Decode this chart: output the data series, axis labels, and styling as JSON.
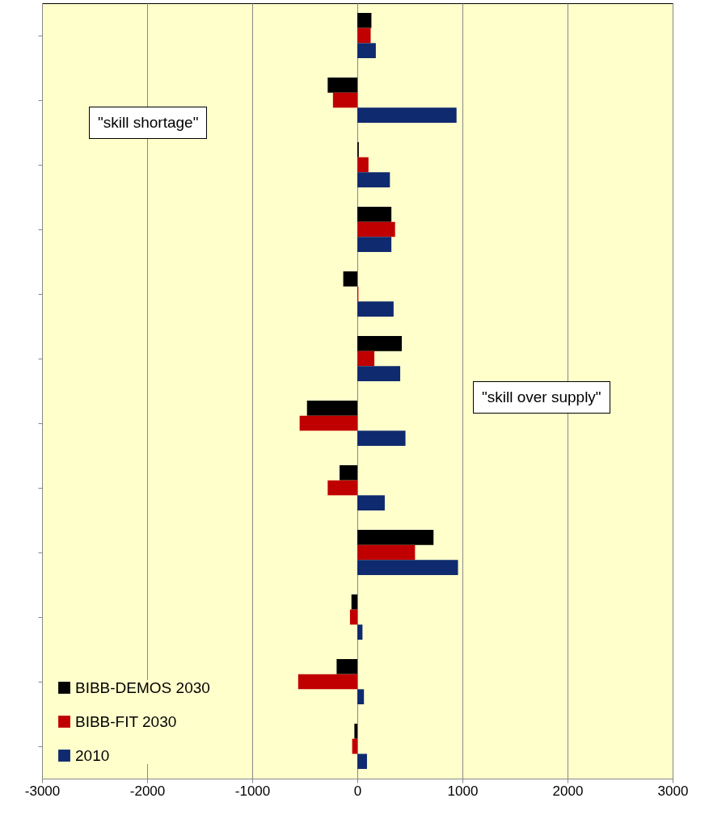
{
  "chart_data": {
    "type": "bar",
    "orientation": "horizontal",
    "categories": [
      null,
      null,
      null,
      null,
      null,
      null,
      null,
      null,
      null,
      null,
      null,
      null
    ],
    "series": [
      {
        "name": "BIBB-DEMOS 2030",
        "color": "#000000",
        "values": [
          134,
          -282,
          14,
          324,
          -134,
          423,
          -479,
          -169,
          725,
          -56,
          -197,
          -28
        ]
      },
      {
        "name": "BIBB-FIT 2030",
        "color": "#c00000",
        "values": [
          127,
          -232,
          106,
          359,
          10,
          162,
          -549,
          -282,
          549,
          -70,
          -563,
          -49
        ]
      },
      {
        "name": "2010",
        "color": "#0f2a6e",
        "values": [
          176,
          944,
          310,
          324,
          345,
          408,
          458,
          261,
          958,
          49,
          63,
          92
        ]
      }
    ],
    "xlim": [
      -3000,
      3000
    ],
    "xticks": [
      -3000,
      -2000,
      -1000,
      0,
      1000,
      2000,
      3000
    ],
    "grid": "x",
    "legend": "bottom left",
    "tick_labels": "x",
    "annotations": [
      "\"skill shortage\"",
      "\"skill over supply\""
    ]
  }
}
